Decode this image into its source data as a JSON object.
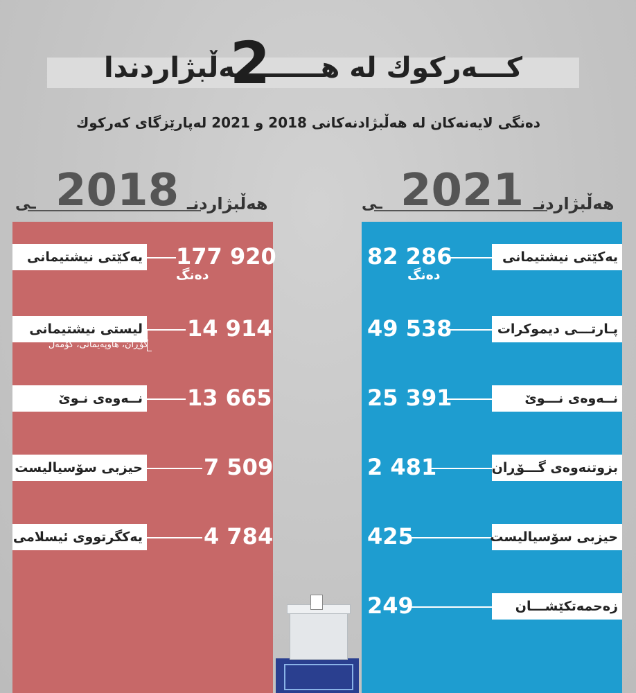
{
  "title": {
    "text": "کـــەرکوك لە هـــــــــەڵبژاردندا",
    "big_number": "2"
  },
  "subtitle": "دەنگی لایەنەکان لە هەڵبژادنەکانی 2018 و 2021 لەپارێزگای کەرکوك",
  "colors": {
    "panel_2018": "#c76868",
    "panel_2021": "#1e9dd0"
  },
  "chart_data": [
    {
      "type": "bar",
      "title": "هەڵبژاردنـــــــــی 2018",
      "year": "2018",
      "heading": "هەڵبژاردنـ",
      "tail": "ـی",
      "unit": "دەنگ",
      "categories": [
        "یەکێتی نیشتیمانی",
        "لیستی نیشتیمانی",
        "نــەوەی نـوێ",
        "حیزبی سۆسیالیست",
        "یەکگرتووی ئیسلامی"
      ],
      "values": [
        177920,
        14914,
        13665,
        7509,
        4784
      ],
      "value_labels": [
        "177 920",
        "14 914",
        "13 665",
        "7 509",
        "4 784"
      ],
      "notes": [
        "",
        "گۆڕان، هاوپەیمانی، کۆمەڵ",
        "",
        "",
        ""
      ]
    },
    {
      "type": "bar",
      "title": "هەڵبژاردنـــــــــی 2021",
      "year": "2021",
      "heading": "هەڵبژاردنـ",
      "tail": "ـی",
      "unit": "دەنگ",
      "categories": [
        "یەکێتی نیشتیمانی",
        "پـارتـــی دیموکرات",
        "نــەوەی نـــوێ",
        "بزوتنەوەی گـــۆڕان",
        "حیزبی سۆسیالیست",
        "زەحمەتکێشـــان"
      ],
      "values": [
        82286,
        49538,
        25391,
        2481,
        425,
        249
      ],
      "value_labels": [
        "82 286",
        "49 538",
        "25 391",
        "2 481",
        "425",
        "249"
      ]
    }
  ]
}
